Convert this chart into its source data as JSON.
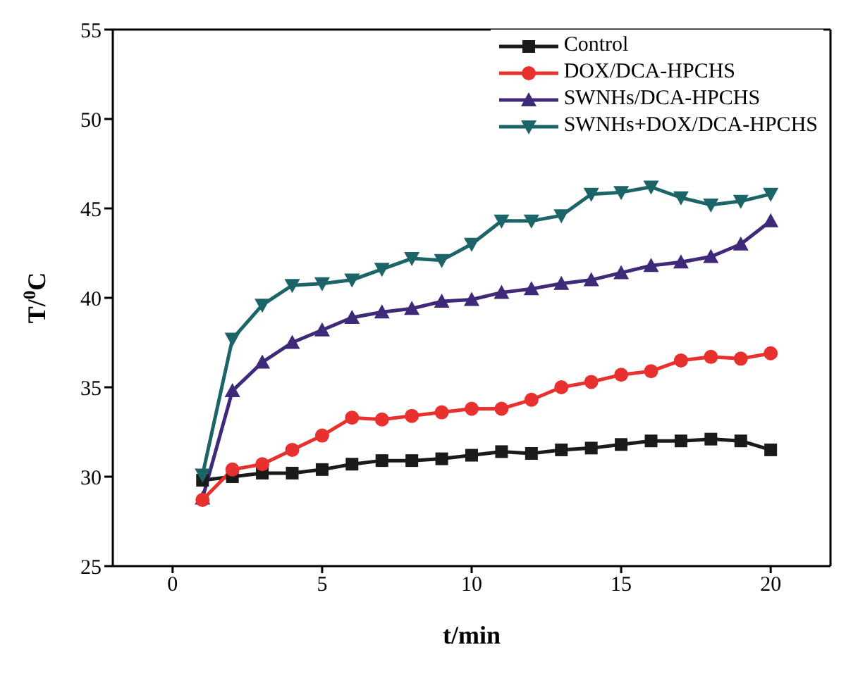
{
  "chart_data": {
    "type": "line",
    "xlabel": "t/min",
    "ylabel": "T/$^{0}$C",
    "x": [
      1,
      2,
      3,
      4,
      5,
      6,
      7,
      8,
      9,
      10,
      11,
      12,
      13,
      14,
      15,
      16,
      17,
      18,
      19,
      20
    ],
    "series": [
      {
        "name": "Control",
        "color": "#1a1a1a",
        "marker": "square",
        "values": [
          29.8,
          30.0,
          30.2,
          30.2,
          30.4,
          30.7,
          30.9,
          30.9,
          31.0,
          31.2,
          31.4,
          31.3,
          31.5,
          31.6,
          31.8,
          32.0,
          32.0,
          32.1,
          32.0,
          31.5
        ]
      },
      {
        "name": "DOX/DCA-HPCHS",
        "color": "#e8312e",
        "marker": "circle",
        "values": [
          28.7,
          30.4,
          30.7,
          31.5,
          32.3,
          33.3,
          33.2,
          33.4,
          33.6,
          33.8,
          33.8,
          34.3,
          35.0,
          35.3,
          35.7,
          35.9,
          36.5,
          36.7,
          36.6,
          36.9
        ]
      },
      {
        "name": "SWNHs/DCA-HPCHS",
        "color": "#3f2a7a",
        "marker": "triangle",
        "values": [
          28.8,
          34.8,
          36.4,
          37.5,
          38.2,
          38.9,
          39.2,
          39.4,
          39.8,
          39.9,
          40.3,
          40.5,
          40.8,
          41.0,
          41.4,
          41.8,
          42.0,
          42.3,
          43.0,
          44.3
        ]
      },
      {
        "name": "SWNHs+DOX/DCA-HPCHS",
        "color": "#1b6468",
        "marker": "triangle-down",
        "values": [
          30.1,
          37.7,
          39.6,
          40.7,
          40.8,
          41.0,
          41.6,
          42.2,
          42.1,
          43.0,
          44.3,
          44.3,
          44.6,
          45.8,
          45.9,
          46.2,
          45.6,
          45.2,
          45.4,
          45.8
        ]
      }
    ],
    "xlim": [
      -2,
      22
    ],
    "xticks": [
      0,
      5,
      10,
      15,
      20
    ],
    "ylim": [
      25,
      55
    ],
    "yticks": [
      25,
      30,
      35,
      40,
      45,
      50,
      55
    ],
    "grid": false,
    "legend": "top right",
    "line_style": "solid"
  }
}
